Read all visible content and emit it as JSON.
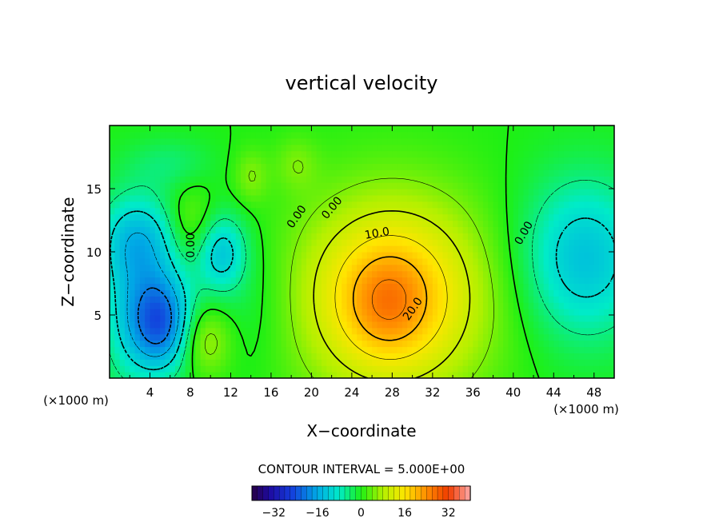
{
  "chart_data": {
    "type": "heatmap",
    "title": "vertical velocity",
    "xlabel": "X−coordinate",
    "ylabel": "Z−coordinate",
    "x_unit": "(×1000 m)",
    "y_unit": "",
    "x_unit_right": "(×1000 m)",
    "xlim": [
      0,
      50
    ],
    "ylim": [
      0,
      20
    ],
    "x_ticks": [
      4,
      8,
      12,
      16,
      20,
      24,
      28,
      32,
      36,
      40,
      44,
      48
    ],
    "y_ticks": [
      5,
      10,
      15
    ],
    "contour_interval_label": "CONTOUR INTERVAL = 5.000E+00",
    "contour_interval": 5.0,
    "contour_labels": [
      "0.00",
      "0.00",
      "0.00",
      "0.00",
      "10.0",
      "20.0"
    ],
    "colorbar": {
      "min": -40,
      "max": 40,
      "ticks": [
        -32,
        -16,
        0,
        16,
        32
      ],
      "tick_labels": [
        "−32",
        "−16",
        "0",
        "16",
        "32"
      ]
    },
    "features": [
      {
        "kind": "updraft",
        "x": 28,
        "z": 6.5,
        "peak": 25
      },
      {
        "kind": "downdraft",
        "x": 5,
        "z": 4.5,
        "peak": -25
      },
      {
        "kind": "downdraft",
        "x": 3.5,
        "z": 11,
        "peak": -15
      },
      {
        "kind": "downdraft",
        "x": 11,
        "z": 10,
        "peak": -13
      },
      {
        "kind": "downdraft",
        "x": 47,
        "z": 9.5,
        "peak": -14
      },
      {
        "kind": "updraft",
        "x": 8,
        "z": 12,
        "peak": 6
      },
      {
        "kind": "updraft",
        "x": 9.5,
        "z": 3,
        "peak": 8
      },
      {
        "kind": "updraft",
        "x": 14,
        "z": 16,
        "peak": 5
      },
      {
        "kind": "updraft",
        "x": 18.5,
        "z": 17,
        "peak": 4
      }
    ]
  }
}
